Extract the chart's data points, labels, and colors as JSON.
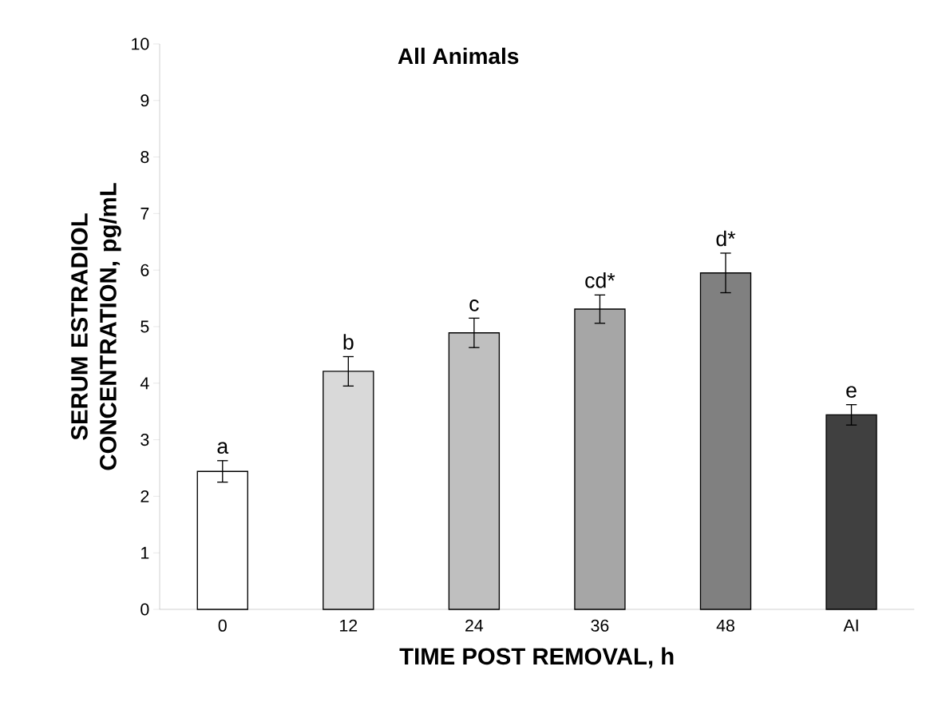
{
  "chart_data": {
    "type": "bar",
    "title": "All Animals",
    "xlabel": "TIME POST REMOVAL, h",
    "ylabel": "SERUM ESTRADIOL CONCENTRATION, pg/mL",
    "categories": [
      "0",
      "12",
      "24",
      "36",
      "48",
      "AI"
    ],
    "values": [
      2.44,
      4.21,
      4.89,
      5.31,
      5.95,
      3.44
    ],
    "errors": [
      0.19,
      0.26,
      0.26,
      0.25,
      0.35,
      0.18
    ],
    "colors": [
      "#ffffff",
      "#d9d9d9",
      "#bfbfbf",
      "#a6a6a6",
      "#808080",
      "#404040"
    ],
    "ylim": [
      0,
      10
    ],
    "yticks": [
      0,
      1,
      2,
      3,
      4,
      5,
      6,
      7,
      8,
      9,
      10
    ],
    "annotations": [
      {
        "text": "a",
        "x": "0",
        "y": 2.44
      },
      {
        "text": "b",
        "x": "12",
        "y": 4.21
      },
      {
        "text": "c",
        "x": "24",
        "y": 4.89
      },
      {
        "text": "cd*",
        "x": "36",
        "y": 5.31
      },
      {
        "text": "d*",
        "x": "48",
        "y": 5.95
      },
      {
        "text": "e",
        "x": "AI",
        "y": 3.44
      }
    ],
    "grid": false
  }
}
